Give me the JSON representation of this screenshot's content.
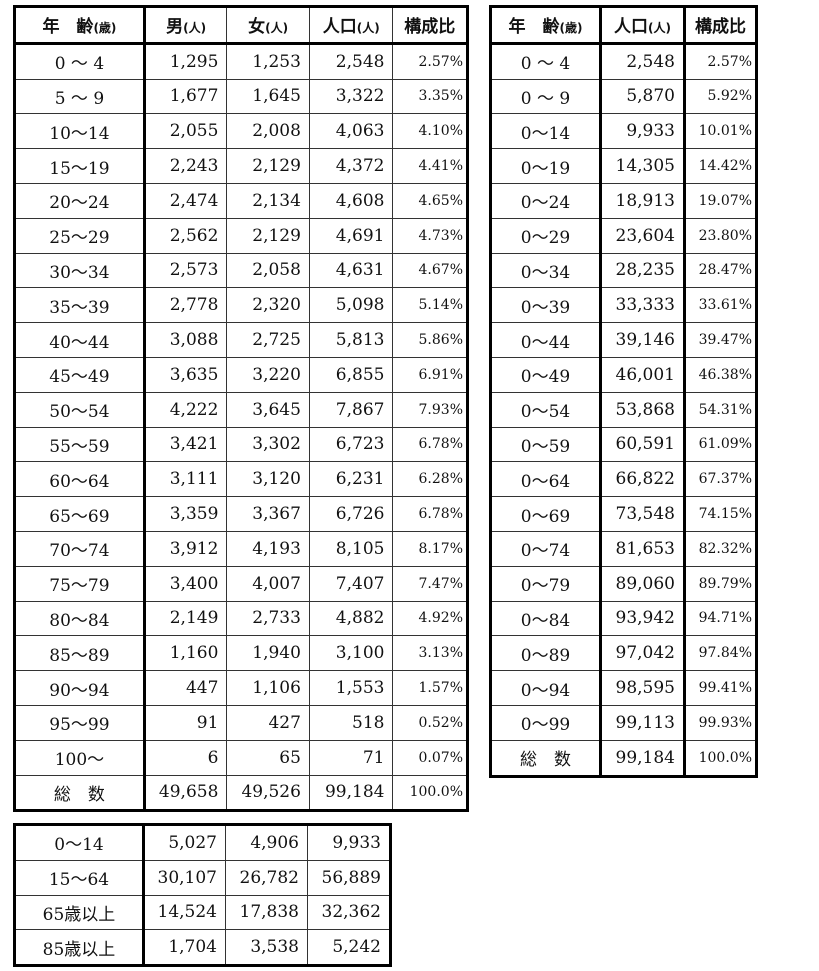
{
  "main": {
    "headers": {
      "age": "年　齢",
      "age_unit": "(歳)",
      "male": "男",
      "male_unit": "(人)",
      "female": "女",
      "female_unit": "(人)",
      "pop": "人口",
      "pop_unit": "(人)",
      "ratio": "構成比"
    },
    "rows": [
      {
        "age": "0 ～ 4",
        "male": "1,295",
        "female": "1,253",
        "pop": "2,548",
        "ratio": "2.57%"
      },
      {
        "age": "5 ～ 9",
        "male": "1,677",
        "female": "1,645",
        "pop": "3,322",
        "ratio": "3.35%"
      },
      {
        "age": "10～14",
        "male": "2,055",
        "female": "2,008",
        "pop": "4,063",
        "ratio": "4.10%"
      },
      {
        "age": "15～19",
        "male": "2,243",
        "female": "2,129",
        "pop": "4,372",
        "ratio": "4.41%"
      },
      {
        "age": "20～24",
        "male": "2,474",
        "female": "2,134",
        "pop": "4,608",
        "ratio": "4.65%"
      },
      {
        "age": "25～29",
        "male": "2,562",
        "female": "2,129",
        "pop": "4,691",
        "ratio": "4.73%"
      },
      {
        "age": "30～34",
        "male": "2,573",
        "female": "2,058",
        "pop": "4,631",
        "ratio": "4.67%"
      },
      {
        "age": "35～39",
        "male": "2,778",
        "female": "2,320",
        "pop": "5,098",
        "ratio": "5.14%"
      },
      {
        "age": "40～44",
        "male": "3,088",
        "female": "2,725",
        "pop": "5,813",
        "ratio": "5.86%"
      },
      {
        "age": "45～49",
        "male": "3,635",
        "female": "3,220",
        "pop": "6,855",
        "ratio": "6.91%"
      },
      {
        "age": "50～54",
        "male": "4,222",
        "female": "3,645",
        "pop": "7,867",
        "ratio": "7.93%"
      },
      {
        "age": "55～59",
        "male": "3,421",
        "female": "3,302",
        "pop": "6,723",
        "ratio": "6.78%"
      },
      {
        "age": "60～64",
        "male": "3,111",
        "female": "3,120",
        "pop": "6,231",
        "ratio": "6.28%"
      },
      {
        "age": "65～69",
        "male": "3,359",
        "female": "3,367",
        "pop": "6,726",
        "ratio": "6.78%"
      },
      {
        "age": "70～74",
        "male": "3,912",
        "female": "4,193",
        "pop": "8,105",
        "ratio": "8.17%"
      },
      {
        "age": "75～79",
        "male": "3,400",
        "female": "4,007",
        "pop": "7,407",
        "ratio": "7.47%"
      },
      {
        "age": "80～84",
        "male": "2,149",
        "female": "2,733",
        "pop": "4,882",
        "ratio": "4.92%"
      },
      {
        "age": "85～89",
        "male": "1,160",
        "female": "1,940",
        "pop": "3,100",
        "ratio": "3.13%"
      },
      {
        "age": "90～94",
        "male": "447",
        "female": "1,106",
        "pop": "1,553",
        "ratio": "1.57%"
      },
      {
        "age": "95～99",
        "male": "91",
        "female": "427",
        "pop": "518",
        "ratio": "0.52%"
      },
      {
        "age": "100～",
        "male": "6",
        "female": "65",
        "pop": "71",
        "ratio": "0.07%"
      }
    ],
    "total": {
      "age": "総　数",
      "male": "49,658",
      "female": "49,526",
      "pop": "99,184",
      "ratio": "100.0%"
    }
  },
  "cumulative": {
    "headers": {
      "age": "年　齢",
      "age_unit": "(歳)",
      "pop": "人口",
      "pop_unit": "(人)",
      "ratio": "構成比"
    },
    "rows": [
      {
        "age": "0 ～ 4",
        "pop": "2,548",
        "ratio": "2.57%"
      },
      {
        "age": "0 ～ 9",
        "pop": "5,870",
        "ratio": "5.92%"
      },
      {
        "age": "0～14",
        "pop": "9,933",
        "ratio": "10.01%"
      },
      {
        "age": "0～19",
        "pop": "14,305",
        "ratio": "14.42%"
      },
      {
        "age": "0～24",
        "pop": "18,913",
        "ratio": "19.07%"
      },
      {
        "age": "0～29",
        "pop": "23,604",
        "ratio": "23.80%"
      },
      {
        "age": "0～34",
        "pop": "28,235",
        "ratio": "28.47%"
      },
      {
        "age": "0～39",
        "pop": "33,333",
        "ratio": "33.61%"
      },
      {
        "age": "0～44",
        "pop": "39,146",
        "ratio": "39.47%"
      },
      {
        "age": "0～49",
        "pop": "46,001",
        "ratio": "46.38%"
      },
      {
        "age": "0～54",
        "pop": "53,868",
        "ratio": "54.31%"
      },
      {
        "age": "0～59",
        "pop": "60,591",
        "ratio": "61.09%"
      },
      {
        "age": "0～64",
        "pop": "66,822",
        "ratio": "67.37%"
      },
      {
        "age": "0～69",
        "pop": "73,548",
        "ratio": "74.15%"
      },
      {
        "age": "0～74",
        "pop": "81,653",
        "ratio": "82.32%"
      },
      {
        "age": "0～79",
        "pop": "89,060",
        "ratio": "89.79%"
      },
      {
        "age": "0～84",
        "pop": "93,942",
        "ratio": "94.71%"
      },
      {
        "age": "0～89",
        "pop": "97,042",
        "ratio": "97.84%"
      },
      {
        "age": "0～94",
        "pop": "98,595",
        "ratio": "99.41%"
      },
      {
        "age": "0～99",
        "pop": "99,113",
        "ratio": "99.93%"
      }
    ],
    "total": {
      "age": "総　数",
      "pop": "99,184",
      "ratio": "100.0%"
    }
  },
  "summary": {
    "rows": [
      {
        "age": "0～14",
        "male": "5,027",
        "female": "4,906",
        "pop": "9,933"
      },
      {
        "age": "15～64",
        "male": "30,107",
        "female": "26,782",
        "pop": "56,889"
      },
      {
        "age": "65歳以上",
        "male": "14,524",
        "female": "17,838",
        "pop": "32,362"
      },
      {
        "age": "85歳以上",
        "male": "1,704",
        "female": "3,538",
        "pop": "5,242"
      }
    ]
  }
}
